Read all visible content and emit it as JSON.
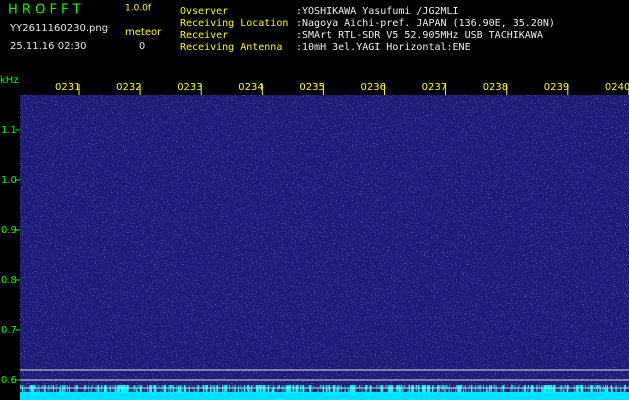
{
  "header": {
    "title": "H R O F F T",
    "version": "1.0.0f",
    "filename": "YY2611160230.png",
    "meteor_label": "meteor",
    "datetime": "25.11.16 02:30",
    "meteor_count": "0"
  },
  "info": [
    {
      "label": "Ovserver",
      "value": ":YOSHIKAWA Yasufumi /JG2MLI"
    },
    {
      "label": "Receiving Location",
      "value": ":Nagoya Aichi-pref. JAPAN (136.90E, 35.20N)"
    },
    {
      "label": "Receiver",
      "value": ":SMArt RTL-SDR V5 52.905MHz USB TACHIKAWA"
    },
    {
      "label": "Receiving Antenna",
      "value": ":10mH 3el.YAGI Horizontal:ENE"
    }
  ],
  "axis": {
    "unit": "kHz",
    "freq_labels": [
      "1.1",
      "1.0",
      "0.9",
      "0.8",
      "0.7",
      "0.6"
    ],
    "time_labels": [
      "0231",
      "0232",
      "0233",
      "0234",
      "0235",
      "0236",
      "0237",
      "0238",
      "0239",
      "0240"
    ]
  }
}
